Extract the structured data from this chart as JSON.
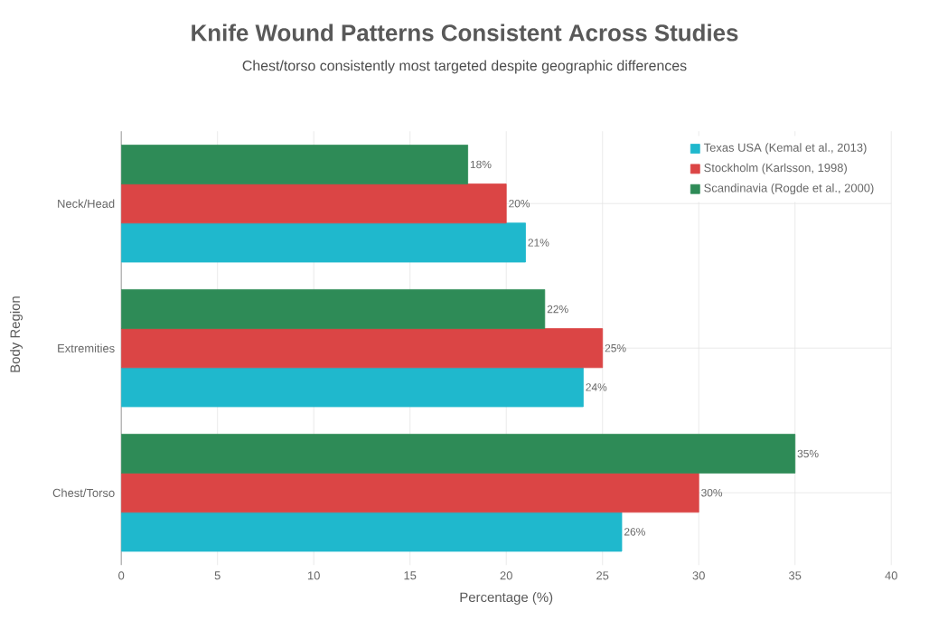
{
  "chart_data": {
    "type": "bar",
    "orientation": "horizontal",
    "title": "Knife Wound Patterns Consistent Across Studies",
    "subtitle": "Chest/torso consistently most targeted despite geographic differences",
    "xlabel": "Percentage (%)",
    "ylabel": "Body Region",
    "categories": [
      "Neck/Head",
      "Extremities",
      "Chest/Torso"
    ],
    "series": [
      {
        "name": "Texas USA (Kemal et al., 2013)",
        "color": "#1fb8cd",
        "values": [
          21,
          24,
          26
        ],
        "value_labels": [
          "21%",
          "24%",
          "26%"
        ]
      },
      {
        "name": "Stockholm (Karlsson, 1998)",
        "color": "#db4545",
        "values": [
          20,
          25,
          30
        ],
        "value_labels": [
          "20%",
          "25%",
          "30%"
        ]
      },
      {
        "name": "Scandinavia (Rogde et al., 2000)",
        "color": "#2e8b57",
        "values": [
          18,
          22,
          35
        ],
        "value_labels": [
          "18%",
          "22%",
          "35%"
        ]
      }
    ],
    "xlim": [
      0,
      40
    ],
    "xticks": [
      0,
      5,
      10,
      15,
      20,
      25,
      30,
      35,
      40
    ],
    "grid": true,
    "legend": "top right"
  }
}
